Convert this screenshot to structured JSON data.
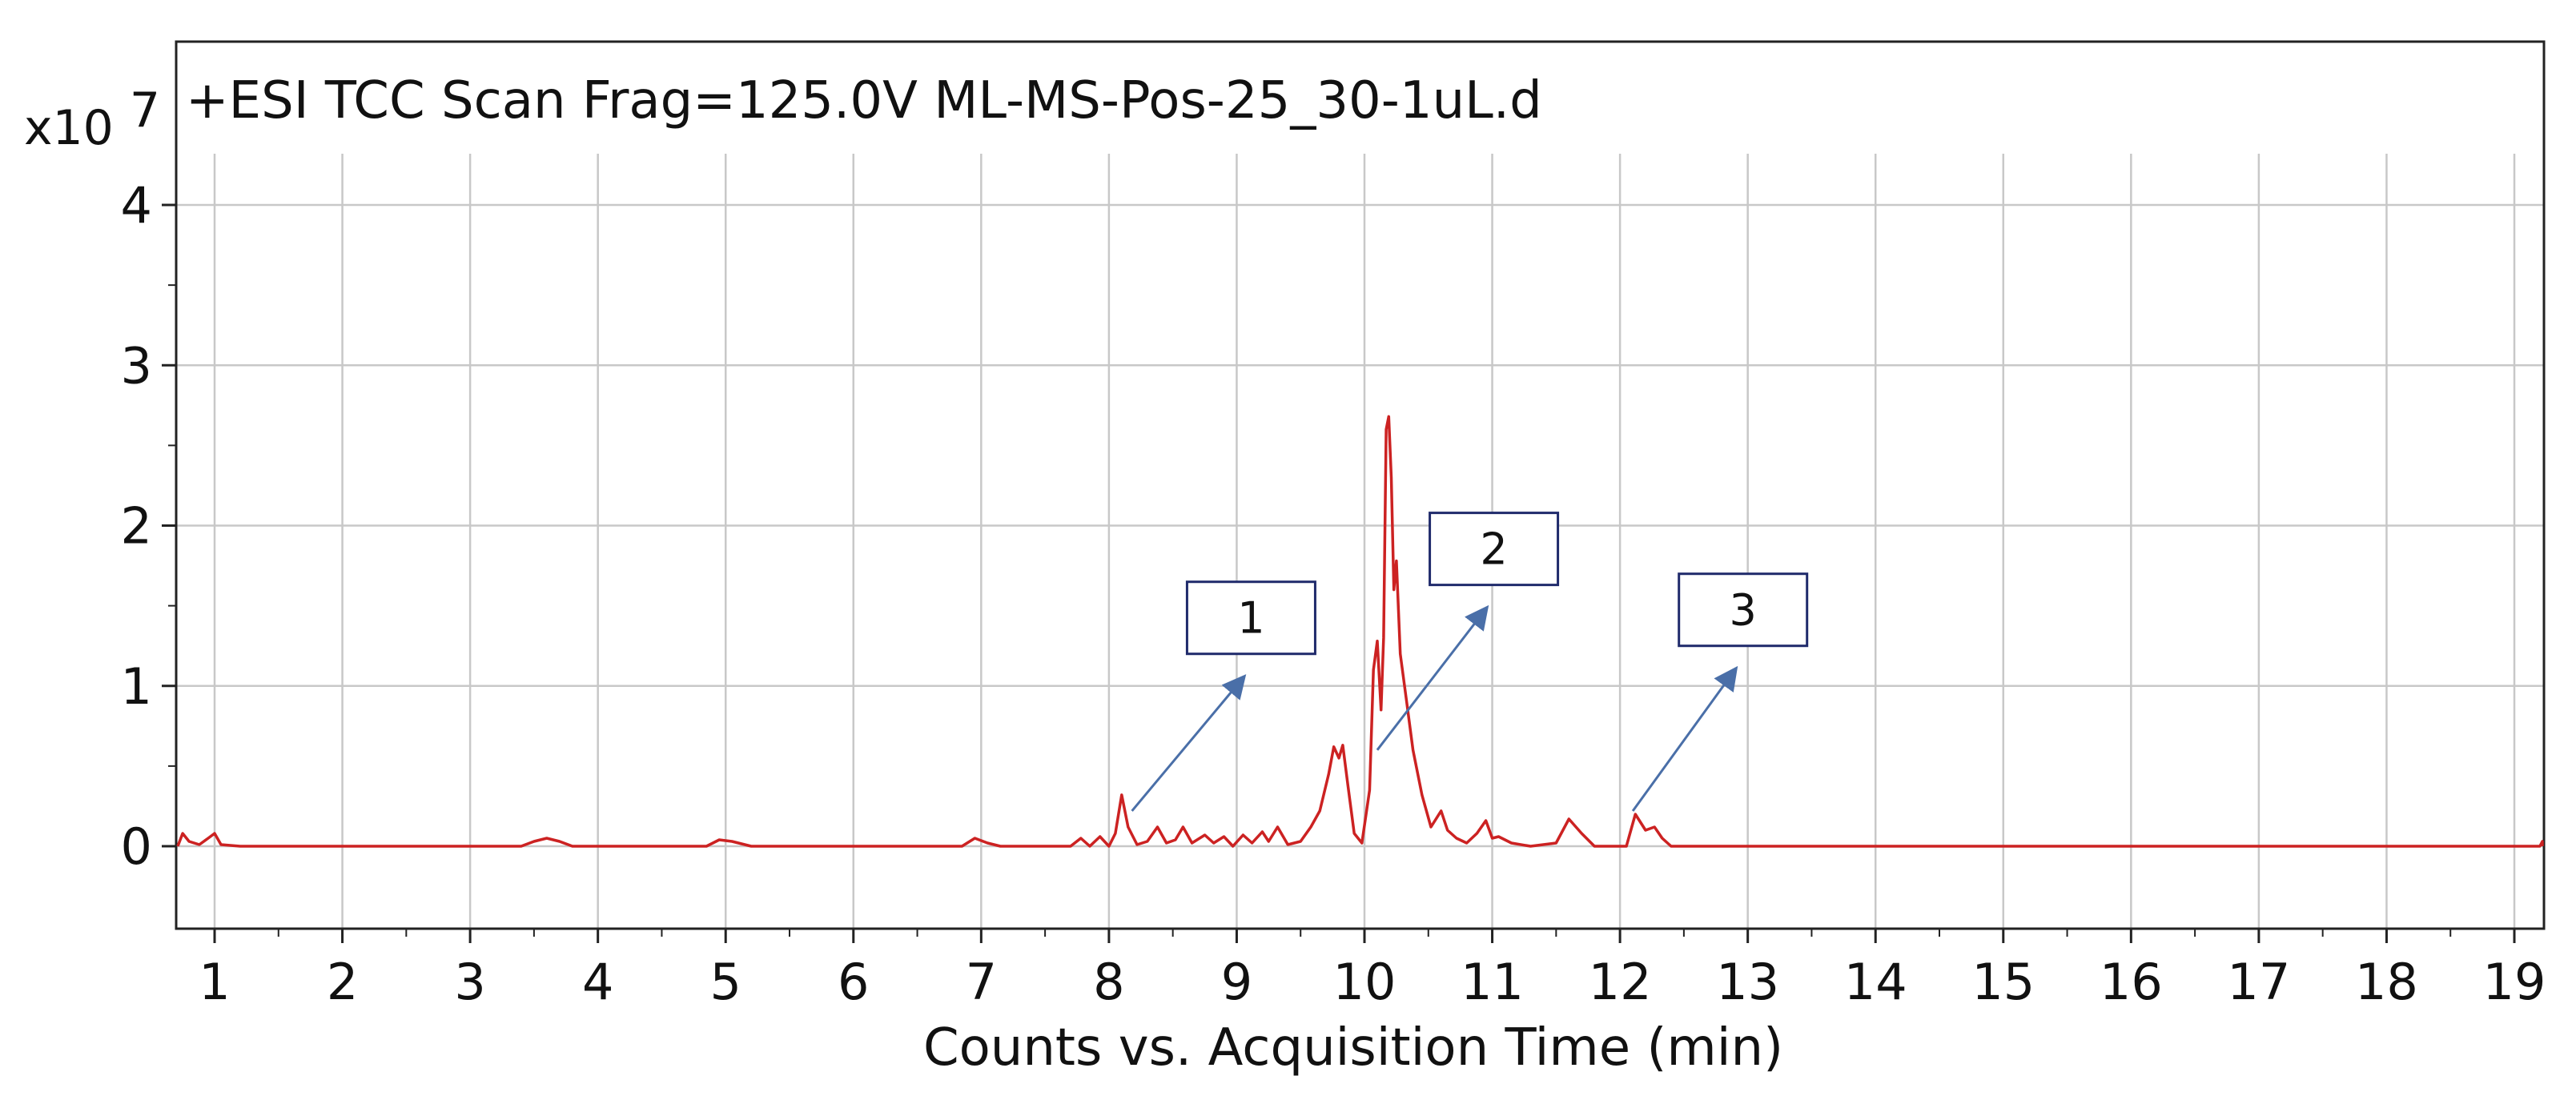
{
  "chart_data": {
    "type": "line",
    "title": "+ESI TCC Scan Frag=125.0V ML-MS-Pos-25_30-1uL.d",
    "xlabel": "Counts vs. Acquisition Time (min)",
    "ylabel": "",
    "y_multiplier": "x10",
    "y_multiplier_exp": "7",
    "xlim": [
      0.7,
      19.45
    ],
    "ylim": [
      -0.55,
      4.3
    ],
    "x_ticks": [
      "1",
      "2",
      "3",
      "4",
      "5",
      "6",
      "7",
      "8",
      "9",
      "10",
      "11",
      "12",
      "13",
      "14",
      "15",
      "16",
      "17",
      "18",
      "19"
    ],
    "y_ticks": [
      "0",
      "1",
      "2",
      "3",
      "4"
    ],
    "grid": true,
    "line_color": "#cc2222",
    "series": [
      {
        "values": [
          [
            0.7,
            0.0
          ],
          [
            0.75,
            0.08
          ],
          [
            0.8,
            0.03
          ],
          [
            0.88,
            0.01
          ],
          [
            0.95,
            0.05
          ],
          [
            1.0,
            0.08
          ],
          [
            1.05,
            0.01
          ],
          [
            1.2,
            0.0
          ],
          [
            3.4,
            0.0
          ],
          [
            3.5,
            0.03
          ],
          [
            3.6,
            0.05
          ],
          [
            3.7,
            0.03
          ],
          [
            3.8,
            0.0
          ],
          [
            4.85,
            0.0
          ],
          [
            4.95,
            0.04
          ],
          [
            5.05,
            0.03
          ],
          [
            5.2,
            0.0
          ],
          [
            6.85,
            0.0
          ],
          [
            6.95,
            0.05
          ],
          [
            7.05,
            0.02
          ],
          [
            7.15,
            0.0
          ],
          [
            7.7,
            0.0
          ],
          [
            7.78,
            0.05
          ],
          [
            7.85,
            0.0
          ],
          [
            7.93,
            0.06
          ],
          [
            8.0,
            0.0
          ],
          [
            8.05,
            0.08
          ],
          [
            8.1,
            0.32
          ],
          [
            8.15,
            0.12
          ],
          [
            8.22,
            0.01
          ],
          [
            8.3,
            0.03
          ],
          [
            8.38,
            0.12
          ],
          [
            8.45,
            0.02
          ],
          [
            8.52,
            0.04
          ],
          [
            8.58,
            0.12
          ],
          [
            8.65,
            0.02
          ],
          [
            8.75,
            0.07
          ],
          [
            8.82,
            0.02
          ],
          [
            8.9,
            0.06
          ],
          [
            8.97,
            0.0
          ],
          [
            9.05,
            0.07
          ],
          [
            9.12,
            0.02
          ],
          [
            9.2,
            0.09
          ],
          [
            9.25,
            0.03
          ],
          [
            9.32,
            0.12
          ],
          [
            9.4,
            0.01
          ],
          [
            9.5,
            0.03
          ],
          [
            9.58,
            0.12
          ],
          [
            9.65,
            0.22
          ],
          [
            9.72,
            0.45
          ],
          [
            9.76,
            0.62
          ],
          [
            9.8,
            0.55
          ],
          [
            9.83,
            0.63
          ],
          [
            9.87,
            0.38
          ],
          [
            9.92,
            0.08
          ],
          [
            9.98,
            0.02
          ],
          [
            10.04,
            0.35
          ],
          [
            10.07,
            1.1
          ],
          [
            10.1,
            1.28
          ],
          [
            10.13,
            0.85
          ],
          [
            10.15,
            1.3
          ],
          [
            10.17,
            2.6
          ],
          [
            10.19,
            2.68
          ],
          [
            10.21,
            2.3
          ],
          [
            10.23,
            1.6
          ],
          [
            10.25,
            1.78
          ],
          [
            10.28,
            1.2
          ],
          [
            10.33,
            0.9
          ],
          [
            10.38,
            0.6
          ],
          [
            10.45,
            0.32
          ],
          [
            10.52,
            0.12
          ],
          [
            10.6,
            0.22
          ],
          [
            10.65,
            0.1
          ],
          [
            10.72,
            0.05
          ],
          [
            10.8,
            0.02
          ],
          [
            10.88,
            0.08
          ],
          [
            10.95,
            0.16
          ],
          [
            11.0,
            0.05
          ],
          [
            11.05,
            0.06
          ],
          [
            11.15,
            0.02
          ],
          [
            11.3,
            0.0
          ],
          [
            11.5,
            0.02
          ],
          [
            11.6,
            0.17
          ],
          [
            11.7,
            0.08
          ],
          [
            11.8,
            0.0
          ],
          [
            12.05,
            0.0
          ],
          [
            12.12,
            0.2
          ],
          [
            12.2,
            0.1
          ],
          [
            12.27,
            0.12
          ],
          [
            12.33,
            0.05
          ],
          [
            12.4,
            0.0
          ],
          [
            19.2,
            0.0
          ],
          [
            19.3,
            0.03
          ],
          [
            19.35,
            0.02
          ],
          [
            19.45,
            0.0
          ]
        ]
      }
    ],
    "annotations": [
      {
        "label": "1",
        "from": [
          8.18,
          0.22
        ],
        "to": [
          9.05,
          1.05
        ]
      },
      {
        "label": "2",
        "from": [
          10.1,
          0.6
        ],
        "to": [
          10.95,
          1.48
        ]
      },
      {
        "label": "3",
        "from": [
          12.1,
          0.22
        ],
        "to": [
          12.9,
          1.1
        ]
      }
    ]
  }
}
